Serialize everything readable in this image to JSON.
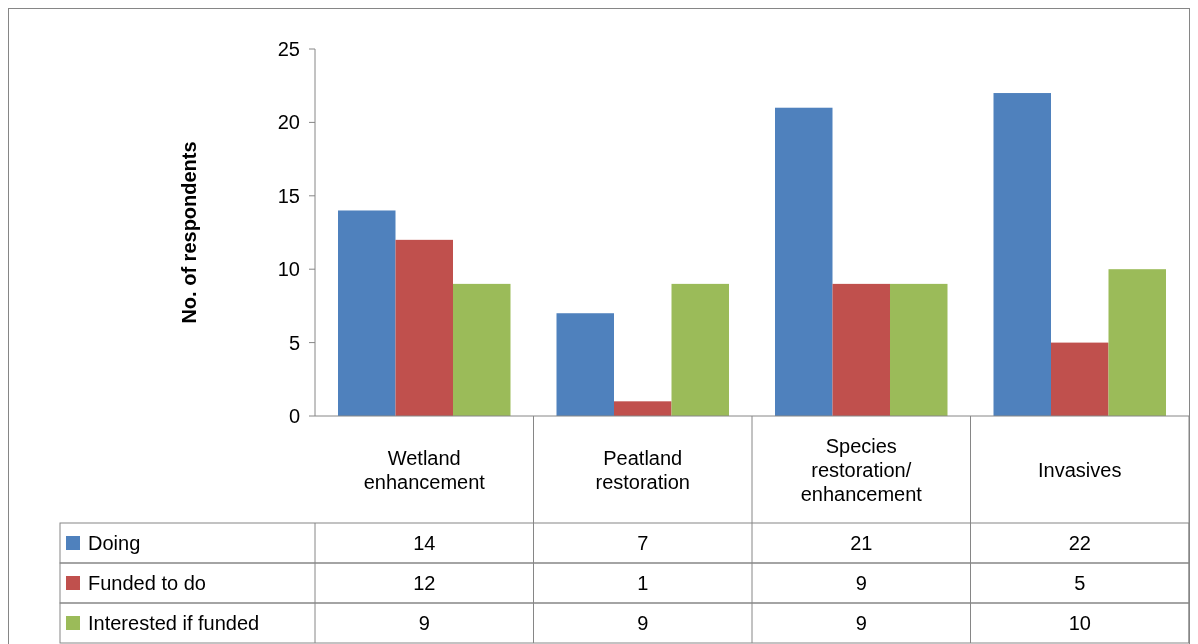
{
  "chart_data": {
    "type": "bar",
    "ylabel": "No. of respondents",
    "categories": [
      "Wetland enhancement",
      "Peatland restoration",
      "Species restoration/ enhancement",
      "Invasives"
    ],
    "series": [
      {
        "name": "Doing",
        "color": "#4f81bd",
        "values": [
          14,
          7,
          21,
          22
        ]
      },
      {
        "name": "Funded to do",
        "color": "#c0504d",
        "values": [
          12,
          1,
          9,
          5
        ]
      },
      {
        "name": "Interested if funded",
        "color": "#9bbb59",
        "values": [
          9,
          9,
          9,
          10
        ]
      }
    ],
    "ylim": [
      0,
      25
    ],
    "yticks": [
      0,
      5,
      10,
      15,
      20,
      25
    ],
    "grid": false,
    "legend": "bottom",
    "data_labels": true
  }
}
